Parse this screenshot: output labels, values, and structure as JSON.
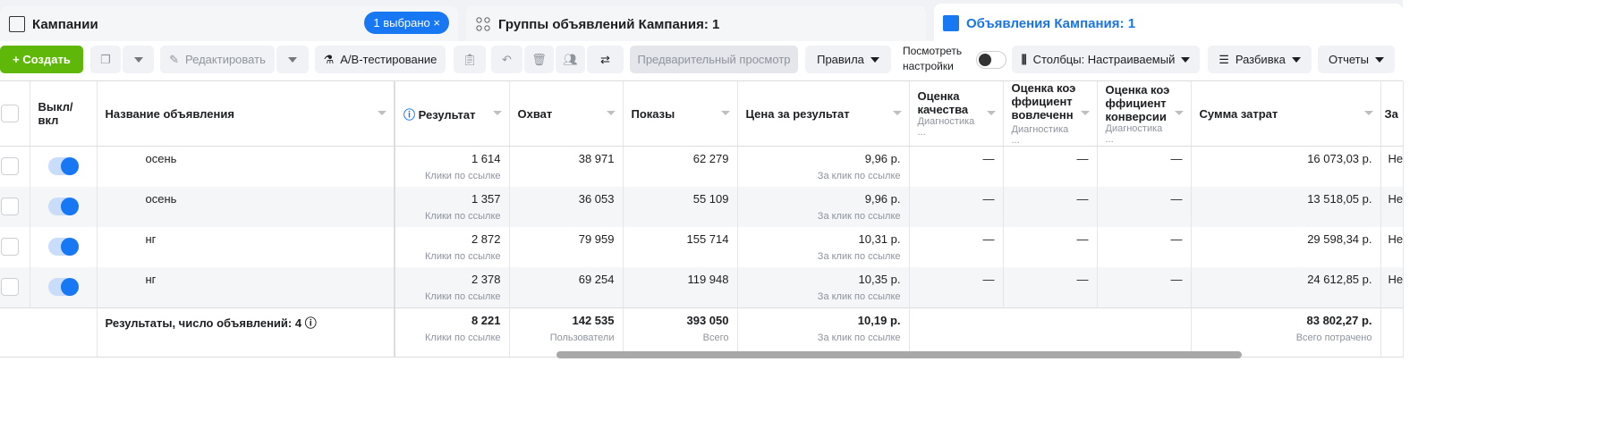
{
  "tabs": [
    {
      "label": "Кампании",
      "badge": "1 выбрано ×",
      "icon": "folder-icon"
    },
    {
      "label": "Группы объявлений Кампания: 1",
      "icon": "grid-icon"
    },
    {
      "label": "Объявления Кампания: 1",
      "icon": "ad-icon",
      "active": true
    }
  ],
  "toolbar": {
    "create": "+ Создать",
    "edit": "Редактировать",
    "ab_test": "A/B-тестирование",
    "preview": "Предварительный просмотр",
    "rules": "Правила",
    "view_settings": "Посмотреть настройки",
    "columns": "Столбцы: Настраиваемый",
    "breakdown": "Разбивка",
    "reports": "Отчеты"
  },
  "columns": {
    "toggle": "Выкл/ вкл",
    "name": "Название объявления",
    "result": "Результат",
    "reach": "Охват",
    "impressions": "Показы",
    "cost": "Цена за результат",
    "quality": "Оценка качества",
    "engagement": "Оценка коэффициент вовлеченности",
    "conversion": "Оценка коэффициент конверсии",
    "diag": "Диагностика ...",
    "spend": "Сумма затрат",
    "next": "За"
  },
  "rows": [
    {
      "name": "осень",
      "result": "1 614",
      "result_sub": "Клики по ссылке",
      "reach": "38 971",
      "impressions": "62 279",
      "cost": "9,96 р.",
      "cost_sub": "За клик по ссылке",
      "quality": "—",
      "engagement": "—",
      "conversion": "—",
      "spend": "16 073,03 р.",
      "next": "Не"
    },
    {
      "name": "осень",
      "result": "1 357",
      "result_sub": "Клики по ссылке",
      "reach": "36 053",
      "impressions": "55 109",
      "cost": "9,96 р.",
      "cost_sub": "За клик по ссылке",
      "quality": "—",
      "engagement": "—",
      "conversion": "—",
      "spend": "13 518,05 р.",
      "next": "Не"
    },
    {
      "name": "нг",
      "result": "2 872",
      "result_sub": "Клики по ссылке",
      "reach": "79 959",
      "impressions": "155 714",
      "cost": "10,31 р.",
      "cost_sub": "За клик по ссылке",
      "quality": "—",
      "engagement": "—",
      "conversion": "—",
      "spend": "29 598,34 р.",
      "next": "Не"
    },
    {
      "name": "нг",
      "result": "2 378",
      "result_sub": "Клики по ссылке",
      "reach": "69 254",
      "impressions": "119 948",
      "cost": "10,35 р.",
      "cost_sub": "За клик по ссылке",
      "quality": "—",
      "engagement": "—",
      "conversion": "—",
      "spend": "24 612,85 р.",
      "next": "Не"
    }
  ],
  "footer": {
    "label": "Результаты, число объявлений: 4",
    "result": "8 221",
    "result_sub": "Клики по ссылке",
    "reach": "142 535",
    "reach_sub": "Пользователи",
    "impressions": "393 050",
    "impressions_sub": "Всего",
    "cost": "10,19 р.",
    "cost_sub": "За клик по ссылке",
    "spend": "83 802,27 р.",
    "spend_sub": "Всего потрачено"
  }
}
